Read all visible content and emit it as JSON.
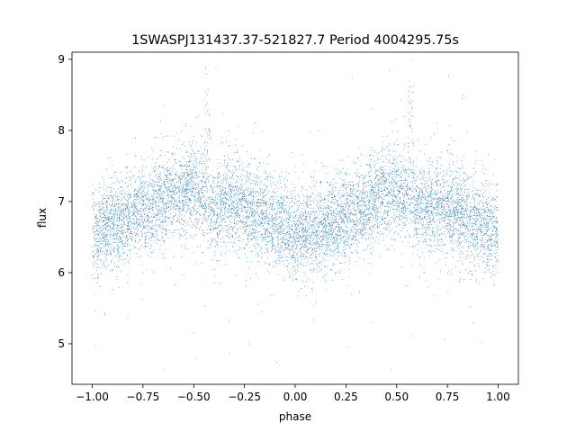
{
  "chart_data": {
    "type": "scatter",
    "title": "1SWASPJ131437.37-521827.7 Period 4004295.75s",
    "xlabel": "phase",
    "ylabel": "flux",
    "xlim": [
      -1.1,
      1.1
    ],
    "ylim": [
      4.43,
      9.1
    ],
    "xticks": [
      -1.0,
      -0.75,
      -0.5,
      -0.25,
      0.0,
      0.25,
      0.5,
      0.75,
      1.0
    ],
    "xtick_labels": [
      "−1.00",
      "−0.75",
      "−0.50",
      "−0.25",
      "0.00",
      "0.25",
      "0.50",
      "0.75",
      "1.00"
    ],
    "yticks": [
      5,
      6,
      7,
      8,
      9
    ],
    "ytick_labels": [
      "5",
      "6",
      "7",
      "8",
      "9"
    ],
    "grid": false,
    "marker_color": "#1f77b4",
    "phase_range": [
      -1.0,
      1.0
    ],
    "trend": [
      {
        "phase": -1.0,
        "flux": 6.55
      },
      {
        "phase": -0.9,
        "flux": 6.7
      },
      {
        "phase": -0.8,
        "flux": 6.8
      },
      {
        "phase": -0.7,
        "flux": 6.95
      },
      {
        "phase": -0.6,
        "flux": 7.1
      },
      {
        "phase": -0.5,
        "flux": 7.2
      },
      {
        "phase": -0.45,
        "flux": 7.05
      },
      {
        "phase": -0.4,
        "flux": 6.9
      },
      {
        "phase": -0.3,
        "flux": 7.0
      },
      {
        "phase": -0.2,
        "flux": 6.85
      },
      {
        "phase": -0.1,
        "flux": 6.7
      },
      {
        "phase": 0.0,
        "flux": 6.55
      },
      {
        "phase": 0.1,
        "flux": 6.6
      },
      {
        "phase": 0.2,
        "flux": 6.7
      },
      {
        "phase": 0.3,
        "flux": 6.85
      },
      {
        "phase": 0.4,
        "flux": 7.05
      },
      {
        "phase": 0.5,
        "flux": 7.2
      },
      {
        "phase": 0.55,
        "flux": 7.05
      },
      {
        "phase": 0.6,
        "flux": 6.9
      },
      {
        "phase": 0.7,
        "flux": 7.0
      },
      {
        "phase": 0.8,
        "flux": 6.85
      },
      {
        "phase": 0.9,
        "flux": 6.7
      },
      {
        "phase": 1.0,
        "flux": 6.55
      }
    ],
    "scatter_spread": 0.55,
    "flare_phases": [
      -0.43,
      0.57
    ]
  }
}
